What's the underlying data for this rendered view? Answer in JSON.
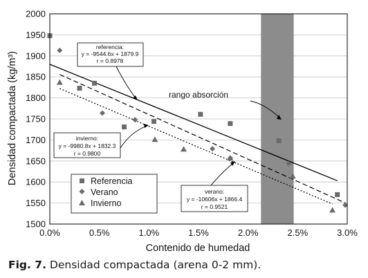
{
  "chart_data": {
    "type": "scatter",
    "xlabel": "Contenido de humedad",
    "ylabel": "Densidad compactada (kg/m³)",
    "xlim": [
      0,
      0.03
    ],
    "ylim": [
      1500,
      2000
    ],
    "x_ticks": [
      "0.0%",
      "0.5%",
      "1.0%",
      "1.5%",
      "2.0%",
      "2.5%",
      "3.0%"
    ],
    "y_ticks": [
      "1500",
      "1550",
      "1600",
      "1650",
      "1700",
      "1750",
      "1800",
      "1850",
      "1900",
      "1950",
      "2000"
    ],
    "grid": true,
    "legend_position": "bottom-left",
    "series": [
      {
        "name": "Referencia",
        "marker": "square",
        "points": [
          [
            0.0,
            1948
          ],
          [
            0.003,
            1823
          ],
          [
            0.0045,
            1835
          ],
          [
            0.0075,
            1731
          ],
          [
            0.0105,
            1744
          ],
          [
            0.0152,
            1761
          ],
          [
            0.0182,
            1739
          ],
          [
            0.0231,
            1698
          ],
          [
            0.029,
            1570
          ]
        ]
      },
      {
        "name": "Verano",
        "marker": "diamond",
        "points": [
          [
            0.001,
            1913
          ],
          [
            0.0053,
            1764
          ],
          [
            0.0086,
            1748
          ],
          [
            0.0164,
            1679
          ],
          [
            0.0182,
            1657
          ],
          [
            0.0241,
            1644
          ],
          [
            0.0298,
            1545
          ]
        ]
      },
      {
        "name": "Invierno",
        "marker": "triangle",
        "points": [
          [
            0.001,
            1837
          ],
          [
            0.0106,
            1701
          ],
          [
            0.0135,
            1678
          ],
          [
            0.0182,
            1657
          ],
          [
            0.0245,
            1614
          ],
          [
            0.0285,
            1533
          ]
        ]
      }
    ],
    "trendlines": [
      {
        "series": "Referencia",
        "slope": -9544.6,
        "intercept": 1879.9,
        "x_range": [
          0,
          0.029
        ],
        "style": "solid",
        "label": {
          "name": "referencia:",
          "equation": "y = -9544.6x + 1879.9",
          "r": "r = 0.8978"
        }
      },
      {
        "series": "Invierno",
        "slope": -9980.8,
        "intercept": 1832.3,
        "x_range": [
          0.001,
          0.0285
        ],
        "style": "dotted",
        "label": {
          "name": "invierno:",
          "equation": "y = -9980.8x + 1832.3",
          "r": "r = 0.9800"
        }
      },
      {
        "series": "Verano",
        "slope": -10606,
        "intercept": 1866.4,
        "x_range": [
          0.001,
          0.0298
        ],
        "style": "dashed",
        "label": {
          "name": "verano:",
          "equation": "y = -10606x + 1866.4",
          "r": "r = 0.9521"
        }
      }
    ],
    "band": {
      "label": "rango absorción",
      "x_range": [
        0.0213,
        0.0246
      ],
      "color": "#8c8c8c"
    }
  },
  "caption": {
    "fig": "Fig. 7.",
    "text": " Densidad compactada (arena 0-2 mm)."
  }
}
